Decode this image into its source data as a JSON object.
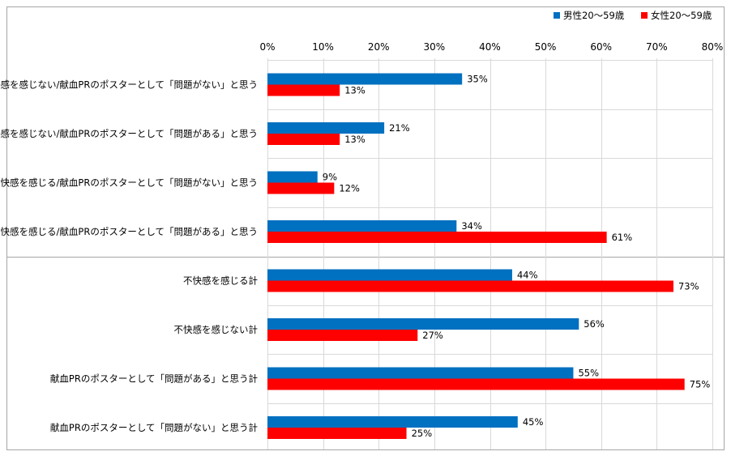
{
  "colors": {
    "male": "#0070C0",
    "female": "#FF0000",
    "grid": "#D9D9D9",
    "frame": "#A6A6A6",
    "text": "#000000"
  },
  "chart_data": {
    "type": "bar",
    "orientation": "horizontal",
    "title": "",
    "xlabel": "",
    "ylabel": "",
    "xlim": [
      0,
      80
    ],
    "x_ticks": [
      "0%",
      "10%",
      "20%",
      "30%",
      "40%",
      "50%",
      "60%",
      "70%",
      "80%"
    ],
    "grid": true,
    "legend_position": "top-right",
    "value_suffix": "%",
    "categories": [
      "不快感を感じない/献血PRのポスターとして「問題がない」と思う",
      "不快感を感じない/献血PRのポスターとして「問題がある」と思う",
      "不快感を感じる/献血PRのポスターとして「問題がない」と思う",
      "不快感を感じる/献血PRのポスターとして「問題がある」と思う",
      "不快感を感じる計",
      "不快感を感じない計",
      "献血PRのポスターとして「問題がある」と思う計",
      "献血PRのポスターとして「問題がない」と思う計"
    ],
    "series": [
      {
        "name": "男性20～59歳",
        "values": [
          35,
          21,
          9,
          34,
          44,
          56,
          55,
          45
        ]
      },
      {
        "name": "女性20～59歳",
        "values": [
          13,
          13,
          12,
          61,
          73,
          27,
          75,
          25
        ]
      }
    ],
    "group_divider_after_index": 3
  }
}
